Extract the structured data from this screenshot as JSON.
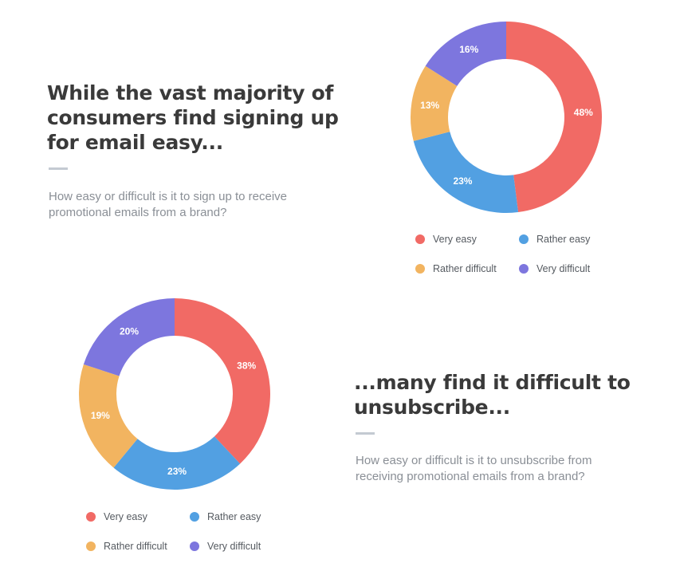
{
  "colors": {
    "very_easy": "#f16a65",
    "rather_easy": "#52a0e2",
    "rather_difficult": "#f2b460",
    "very_difficult": "#7d76de"
  },
  "section1": {
    "heading": "While the vast majority of consumers find signing up for email easy...",
    "question": "How easy or difficult is it to sign up to receive promotional emails from a brand?"
  },
  "section2": {
    "heading": "...many find it difficult to unsubscribe...",
    "question": "How easy or difficult is it to unsubscribe from receiving promotional emails from a brand?"
  },
  "chart_data": [
    {
      "type": "pie",
      "categories": [
        "Very easy",
        "Rather easy",
        "Rather difficult",
        "Very difficult"
      ],
      "values": [
        48,
        23,
        13,
        16
      ],
      "labels": [
        "48%",
        "23%",
        "13%",
        "16%"
      ],
      "legend": [
        {
          "label": "Very easy",
          "color_key": "very_easy"
        },
        {
          "label": "Rather easy",
          "color_key": "rather_easy"
        },
        {
          "label": "Rather difficult",
          "color_key": "rather_difficult"
        },
        {
          "label": "Very difficult",
          "color_key": "very_difficult"
        }
      ]
    },
    {
      "type": "pie",
      "categories": [
        "Very easy",
        "Rather easy",
        "Rather difficult",
        "Very difficult"
      ],
      "values": [
        38,
        23,
        19,
        20
      ],
      "labels": [
        "38%",
        "23%",
        "19%",
        "20%"
      ],
      "legend": [
        {
          "label": "Very easy",
          "color_key": "very_easy"
        },
        {
          "label": "Rather easy",
          "color_key": "rather_easy"
        },
        {
          "label": "Rather difficult",
          "color_key": "rather_difficult"
        },
        {
          "label": "Very difficult",
          "color_key": "very_difficult"
        }
      ]
    }
  ]
}
